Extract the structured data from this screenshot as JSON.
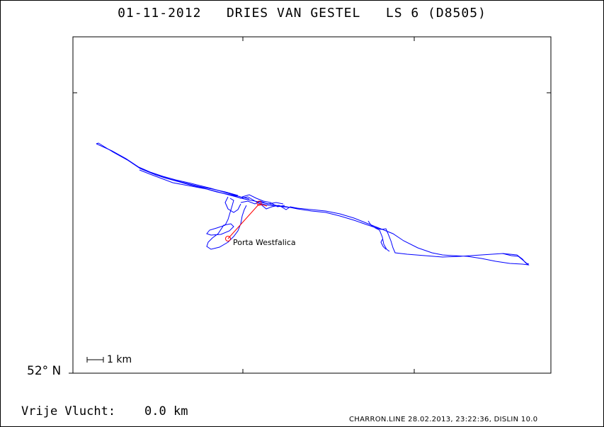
{
  "title": "01-11-2012   DRIES VAN GESTEL   LS 6 (D8505)",
  "latitude_label": "52° N",
  "scale_label": "1 km",
  "places": [
    {
      "name": "Porta Westfalica"
    }
  ],
  "free_flight_label": "Vrije Vlucht:",
  "free_flight_value": "0.0 km",
  "credit": "CHARRON.LINE 28.02.2013, 23:22:36, DISLIN 10.0",
  "colors": {
    "track": "#0000ff",
    "task": "#ff0000",
    "axes": "#000000"
  }
}
